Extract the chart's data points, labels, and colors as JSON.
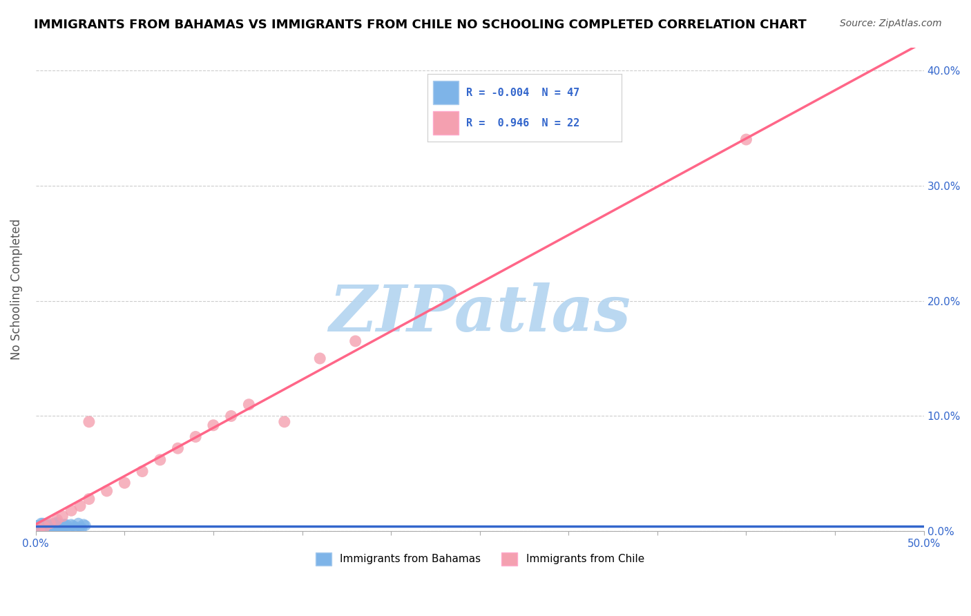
{
  "title": "IMMIGRANTS FROM BAHAMAS VS IMMIGRANTS FROM CHILE NO SCHOOLING COMPLETED CORRELATION CHART",
  "source": "Source: ZipAtlas.com",
  "ylabel": "No Schooling Completed",
  "xlim": [
    0.0,
    0.5
  ],
  "ylim": [
    0.0,
    0.42
  ],
  "watermark": "ZIPatlas",
  "watermark_color": "#b3d4f0",
  "background_color": "#ffffff",
  "grid_color": "#cccccc",
  "title_color": "#000000",
  "title_fontsize": 13,
  "source_fontsize": 10,
  "legend_color": "#3366cc",
  "blue_color": "#7eb4e8",
  "pink_color": "#f4a0b0",
  "blue_line_color": "#3366cc",
  "pink_line_color": "#ff6688",
  "blue_scatter_x": [
    0.0,
    0.002,
    0.004,
    0.006,
    0.008,
    0.01,
    0.012,
    0.014,
    0.016,
    0.018,
    0.02,
    0.022,
    0.024,
    0.026,
    0.028,
    0.001,
    0.003,
    0.005,
    0.007,
    0.009,
    0.011,
    0.013,
    0.015,
    0.017,
    0.019,
    0.021,
    0.023,
    0.025,
    0.027,
    0.0,
    0.001,
    0.002,
    0.003,
    0.004,
    0.005,
    0.006,
    0.007,
    0.008,
    0.009,
    0.01,
    0.011,
    0.012,
    0.013,
    0.014,
    0.015,
    0.016,
    0.017
  ],
  "blue_scatter_y": [
    0.005,
    0.003,
    0.007,
    0.002,
    0.006,
    0.004,
    0.008,
    0.003,
    0.005,
    0.002,
    0.006,
    0.004,
    0.007,
    0.003,
    0.005,
    0.001,
    0.004,
    0.006,
    0.003,
    0.005,
    0.002,
    0.007,
    0.004,
    0.006,
    0.003,
    0.005,
    0.002,
    0.004,
    0.006,
    0.003,
    0.005,
    0.002,
    0.007,
    0.004,
    0.006,
    0.003,
    0.005,
    0.002,
    0.004,
    0.006,
    0.003,
    0.007,
    0.004,
    0.005,
    0.002,
    0.006,
    0.003
  ],
  "pink_scatter_x": [
    0.002,
    0.005,
    0.008,
    0.012,
    0.015,
    0.02,
    0.025,
    0.03,
    0.04,
    0.05,
    0.06,
    0.07,
    0.08,
    0.09,
    0.1,
    0.11,
    0.12,
    0.14,
    0.16,
    0.18,
    0.03,
    0.4
  ],
  "pink_scatter_y": [
    0.002,
    0.004,
    0.007,
    0.01,
    0.013,
    0.018,
    0.022,
    0.028,
    0.035,
    0.042,
    0.052,
    0.062,
    0.072,
    0.082,
    0.092,
    0.1,
    0.11,
    0.095,
    0.15,
    0.165,
    0.095,
    0.34
  ]
}
